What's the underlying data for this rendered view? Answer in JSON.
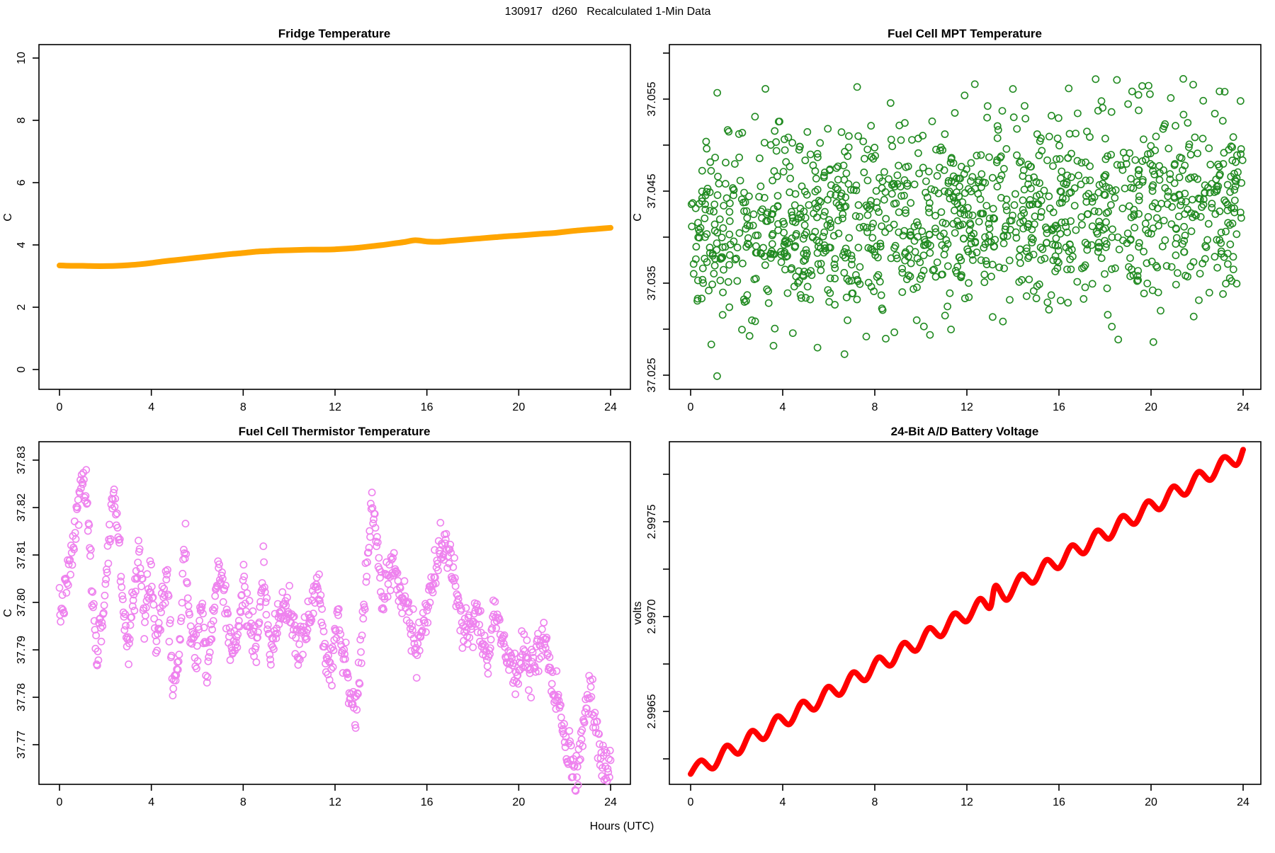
{
  "main_title": "130917   d260   Recalculated 1-Min Data",
  "outer_xlabel": "Hours (UTC)",
  "colors": {
    "fridge_line": "#FFA500",
    "mpt_points": "#228B22",
    "thermistor_points": "#EE82EE",
    "battery_line": "#FF0000",
    "axis": "#000000",
    "background": "#FFFFFF"
  },
  "chart_data": [
    {
      "id": "fridge",
      "type": "line",
      "title": "Fridge Temperature",
      "ylabel": "C",
      "xlabel": "Hours (UTC)",
      "xlim": [
        0,
        24
      ],
      "ylim": [
        0,
        10
      ],
      "grid": false,
      "legend": "none",
      "xticks": [
        {
          "v": 0,
          "l": "0"
        },
        {
          "v": 4,
          "l": "4"
        },
        {
          "v": 8,
          "l": "8"
        },
        {
          "v": 12,
          "l": "12"
        },
        {
          "v": 16,
          "l": "16"
        },
        {
          "v": 20,
          "l": "20"
        },
        {
          "v": 24,
          "l": "24"
        }
      ],
      "yticks": [
        {
          "v": 0,
          "l": "0"
        },
        {
          "v": 2,
          "l": "2"
        },
        {
          "v": 4,
          "l": "4"
        },
        {
          "v": 6,
          "l": "6"
        },
        {
          "v": 8,
          "l": "8"
        },
        {
          "v": 10,
          "l": "10"
        }
      ],
      "color": "#FFA500",
      "line_width": 8,
      "points": [
        [
          0,
          3.34
        ],
        [
          0.5,
          3.33
        ],
        [
          1,
          3.33
        ],
        [
          1.5,
          3.32
        ],
        [
          2,
          3.32
        ],
        [
          2.5,
          3.33
        ],
        [
          3,
          3.35
        ],
        [
          3.5,
          3.38
        ],
        [
          4,
          3.42
        ],
        [
          4.5,
          3.47
        ],
        [
          5,
          3.51
        ],
        [
          5.5,
          3.55
        ],
        [
          6,
          3.59
        ],
        [
          6.5,
          3.63
        ],
        [
          7,
          3.67
        ],
        [
          7.5,
          3.71
        ],
        [
          8,
          3.74
        ],
        [
          8.5,
          3.78
        ],
        [
          9,
          3.8
        ],
        [
          9.5,
          3.82
        ],
        [
          10,
          3.83
        ],
        [
          10.5,
          3.84
        ],
        [
          11,
          3.85
        ],
        [
          11.5,
          3.85
        ],
        [
          12,
          3.86
        ],
        [
          12.5,
          3.88
        ],
        [
          13,
          3.91
        ],
        [
          13.5,
          3.95
        ],
        [
          14,
          3.99
        ],
        [
          14.5,
          4.04
        ],
        [
          15,
          4.09
        ],
        [
          15.5,
          4.15
        ],
        [
          16,
          4.11
        ],
        [
          16.5,
          4.1
        ],
        [
          17,
          4.13
        ],
        [
          17.5,
          4.16
        ],
        [
          18,
          4.19
        ],
        [
          18.5,
          4.22
        ],
        [
          19,
          4.25
        ],
        [
          19.5,
          4.28
        ],
        [
          20,
          4.3
        ],
        [
          20.5,
          4.33
        ],
        [
          21,
          4.36
        ],
        [
          21.5,
          4.38
        ],
        [
          22,
          4.42
        ],
        [
          22.5,
          4.46
        ],
        [
          23,
          4.49
        ],
        [
          23.5,
          4.52
        ],
        [
          24,
          4.55
        ]
      ]
    },
    {
      "id": "mpt",
      "type": "scatter",
      "title": "Fuel Cell MPT Temperature",
      "ylabel": "C",
      "xlabel": "Hours (UTC)",
      "xlim": [
        0,
        24
      ],
      "ylim": [
        37.0235,
        37.061
      ],
      "grid": false,
      "legend": "none",
      "xticks": [
        {
          "v": 0,
          "l": "0"
        },
        {
          "v": 4,
          "l": "4"
        },
        {
          "v": 8,
          "l": "8"
        },
        {
          "v": 12,
          "l": "12"
        },
        {
          "v": 16,
          "l": "16"
        },
        {
          "v": 20,
          "l": "20"
        },
        {
          "v": 24,
          "l": "24"
        }
      ],
      "yticks": [
        {
          "v": 37.025,
          "l": "37.025"
        },
        {
          "v": 37.03,
          "l": ""
        },
        {
          "v": 37.035,
          "l": "37.035"
        },
        {
          "v": 37.04,
          "l": ""
        },
        {
          "v": 37.045,
          "l": "37.045"
        },
        {
          "v": 37.05,
          "l": ""
        },
        {
          "v": 37.055,
          "l": "37.055"
        },
        {
          "v": 37.06,
          "l": ""
        }
      ],
      "color": "#228B22",
      "marker": "open-circle",
      "marker_radius": 4.6,
      "gen": {
        "n": 1250,
        "seed": 42,
        "y_base": 37.0403,
        "trend_per_hour": 0.00016,
        "sd": 0.0053,
        "clip_lo": 37.0268,
        "clip_hi": 37.0572
      },
      "outliers": [
        [
          1.15,
          37.0249
        ],
        [
          21.4,
          37.0572
        ],
        [
          14.0,
          37.0561
        ],
        [
          23.2,
          37.0558
        ],
        [
          11.9,
          37.0554
        ],
        [
          20.1,
          37.0286
        ],
        [
          3.6,
          37.0282
        ]
      ]
    },
    {
      "id": "thermistor",
      "type": "scatter",
      "title": "Fuel Cell Thermistor Temperature",
      "ylabel": "C",
      "xlabel": "Hours (UTC)",
      "xlim": [
        0,
        24
      ],
      "ylim": [
        37.7615,
        37.834
      ],
      "grid": false,
      "legend": "none",
      "xticks": [
        {
          "v": 0,
          "l": "0"
        },
        {
          "v": 4,
          "l": "4"
        },
        {
          "v": 8,
          "l": "8"
        },
        {
          "v": 12,
          "l": "12"
        },
        {
          "v": 16,
          "l": "16"
        },
        {
          "v": 20,
          "l": "20"
        },
        {
          "v": 24,
          "l": "24"
        }
      ],
      "yticks": [
        {
          "v": 37.77,
          "l": "37.77"
        },
        {
          "v": 37.78,
          "l": "37.78"
        },
        {
          "v": 37.79,
          "l": "37.79"
        },
        {
          "v": 37.8,
          "l": "37.80"
        },
        {
          "v": 37.81,
          "l": "37.81"
        },
        {
          "v": 37.82,
          "l": "37.82"
        },
        {
          "v": 37.83,
          "l": "37.83"
        }
      ],
      "color": "#EE82EE",
      "marker": "open-circle",
      "marker_radius": 4.6,
      "gen": {
        "n": 950,
        "seed": 7,
        "jitter_sd": 0.0022
      },
      "center_path": [
        [
          0,
          37.797
        ],
        [
          0.3,
          37.803
        ],
        [
          0.6,
          37.812
        ],
        [
          1,
          37.827
        ],
        [
          1.2,
          37.82
        ],
        [
          1.45,
          37.8
        ],
        [
          1.65,
          37.789
        ],
        [
          1.9,
          37.798
        ],
        [
          2.15,
          37.812
        ],
        [
          2.35,
          37.824
        ],
        [
          2.55,
          37.815
        ],
        [
          2.8,
          37.798
        ],
        [
          3,
          37.79
        ],
        [
          3.2,
          37.8
        ],
        [
          3.45,
          37.813
        ],
        [
          3.7,
          37.794
        ],
        [
          3.95,
          37.808
        ],
        [
          4.2,
          37.792
        ],
        [
          4.45,
          37.8
        ],
        [
          4.7,
          37.806
        ],
        [
          4.95,
          37.783
        ],
        [
          5.2,
          37.788
        ],
        [
          5.45,
          37.812
        ],
        [
          5.7,
          37.795
        ],
        [
          5.95,
          37.79
        ],
        [
          6.2,
          37.8
        ],
        [
          6.45,
          37.786
        ],
        [
          6.7,
          37.797
        ],
        [
          6.95,
          37.808
        ],
        [
          7.2,
          37.8
        ],
        [
          7.45,
          37.792
        ],
        [
          7.7,
          37.79
        ],
        [
          8,
          37.804
        ],
        [
          8.3,
          37.795
        ],
        [
          8.6,
          37.79
        ],
        [
          8.9,
          37.806
        ],
        [
          9.2,
          37.788
        ],
        [
          9.5,
          37.796
        ],
        [
          9.8,
          37.8
        ],
        [
          10.1,
          37.797
        ],
        [
          10.4,
          37.79
        ],
        [
          10.7,
          37.793
        ],
        [
          11,
          37.8
        ],
        [
          11.3,
          37.804
        ],
        [
          11.55,
          37.79
        ],
        [
          11.85,
          37.786
        ],
        [
          12.1,
          37.799
        ],
        [
          12.35,
          37.789
        ],
        [
          12.6,
          37.783
        ],
        [
          12.9,
          37.776
        ],
        [
          13.15,
          37.79
        ],
        [
          13.4,
          37.808
        ],
        [
          13.6,
          37.821
        ],
        [
          13.8,
          37.814
        ],
        [
          14.05,
          37.8
        ],
        [
          14.3,
          37.806
        ],
        [
          14.55,
          37.809
        ],
        [
          14.8,
          37.8
        ],
        [
          15.05,
          37.802
        ],
        [
          15.3,
          37.795
        ],
        [
          15.55,
          37.789
        ],
        [
          15.8,
          37.794
        ],
        [
          16.05,
          37.8
        ],
        [
          16.3,
          37.805
        ],
        [
          16.55,
          37.81
        ],
        [
          16.8,
          37.813
        ],
        [
          17.05,
          37.809
        ],
        [
          17.3,
          37.8
        ],
        [
          17.55,
          37.794
        ],
        [
          17.8,
          37.795
        ],
        [
          18.1,
          37.8
        ],
        [
          18.4,
          37.792
        ],
        [
          18.7,
          37.789
        ],
        [
          19,
          37.799
        ],
        [
          19.3,
          37.793
        ],
        [
          19.6,
          37.786
        ],
        [
          19.9,
          37.784
        ],
        [
          20.2,
          37.791
        ],
        [
          20.5,
          37.785
        ],
        [
          20.8,
          37.79
        ],
        [
          21.1,
          37.792
        ],
        [
          21.4,
          37.783
        ],
        [
          21.7,
          37.779
        ],
        [
          22,
          37.771
        ],
        [
          22.3,
          37.766
        ],
        [
          22.55,
          37.763
        ],
        [
          22.8,
          37.774
        ],
        [
          23.1,
          37.78
        ],
        [
          23.35,
          37.774
        ],
        [
          23.6,
          37.768
        ],
        [
          23.85,
          37.765
        ],
        [
          24,
          37.766
        ]
      ]
    },
    {
      "id": "battery",
      "type": "line",
      "title": "24-Bit A/D Battery Voltage",
      "ylabel": "volts",
      "xlabel": "Hours (UTC)",
      "xlim": [
        0,
        24
      ],
      "ylim": [
        2.99608,
        2.99795
      ],
      "grid": false,
      "legend": "none",
      "xticks": [
        {
          "v": 0,
          "l": "0"
        },
        {
          "v": 4,
          "l": "4"
        },
        {
          "v": 8,
          "l": "8"
        },
        {
          "v": 12,
          "l": "12"
        },
        {
          "v": 16,
          "l": "16"
        },
        {
          "v": 20,
          "l": "20"
        },
        {
          "v": 24,
          "l": "24"
        }
      ],
      "yticks": [
        {
          "v": 2.99625,
          "l": ""
        },
        {
          "v": 2.9965,
          "l": "2.9965"
        },
        {
          "v": 2.99675,
          "l": ""
        },
        {
          "v": 2.997,
          "l": "2.9970"
        },
        {
          "v": 2.99725,
          "l": ""
        },
        {
          "v": 2.9975,
          "l": "2.9975"
        },
        {
          "v": 2.99775,
          "l": ""
        }
      ],
      "color": "#FF0000",
      "line_width": 8,
      "points": [
        [
          0,
          2.99617
        ],
        [
          0.45,
          2.996242
        ],
        [
          1.0,
          2.9962
        ],
        [
          1.55,
          2.996319
        ],
        [
          2.1,
          2.996278
        ],
        [
          2.65,
          2.996397
        ],
        [
          3.2,
          2.996355
        ],
        [
          3.75,
          2.996474
        ],
        [
          4.3,
          2.996433
        ],
        [
          4.85,
          2.996551
        ],
        [
          5.4,
          2.99651
        ],
        [
          5.95,
          2.996629
        ],
        [
          6.5,
          2.996588
        ],
        [
          7.05,
          2.996706
        ],
        [
          7.6,
          2.996665
        ],
        [
          8.15,
          2.996784
        ],
        [
          8.7,
          2.996742
        ],
        [
          9.25,
          2.996861
        ],
        [
          9.8,
          2.99682
        ],
        [
          10.35,
          2.996939
        ],
        [
          10.9,
          2.996897
        ],
        [
          11.45,
          2.997016
        ],
        [
          12.0,
          2.996975
        ],
        [
          12.55,
          2.997093
        ],
        [
          13.0,
          2.997045
        ],
        [
          13.25,
          2.997163
        ],
        [
          13.75,
          2.997088
        ],
        [
          14.35,
          2.99722
        ],
        [
          14.9,
          2.997179
        ],
        [
          15.45,
          2.997298
        ],
        [
          16.0,
          2.997256
        ],
        [
          16.55,
          2.997375
        ],
        [
          17.1,
          2.997334
        ],
        [
          17.65,
          2.997453
        ],
        [
          18.2,
          2.997411
        ],
        [
          18.75,
          2.99753
        ],
        [
          19.3,
          2.997489
        ],
        [
          19.85,
          2.997607
        ],
        [
          20.4,
          2.997566
        ],
        [
          20.95,
          2.997685
        ],
        [
          21.5,
          2.997643
        ],
        [
          22.05,
          2.997762
        ],
        [
          22.6,
          2.997721
        ],
        [
          23.15,
          2.99784
        ],
        [
          23.7,
          2.997798
        ],
        [
          24.0,
          2.99788
        ]
      ]
    }
  ]
}
